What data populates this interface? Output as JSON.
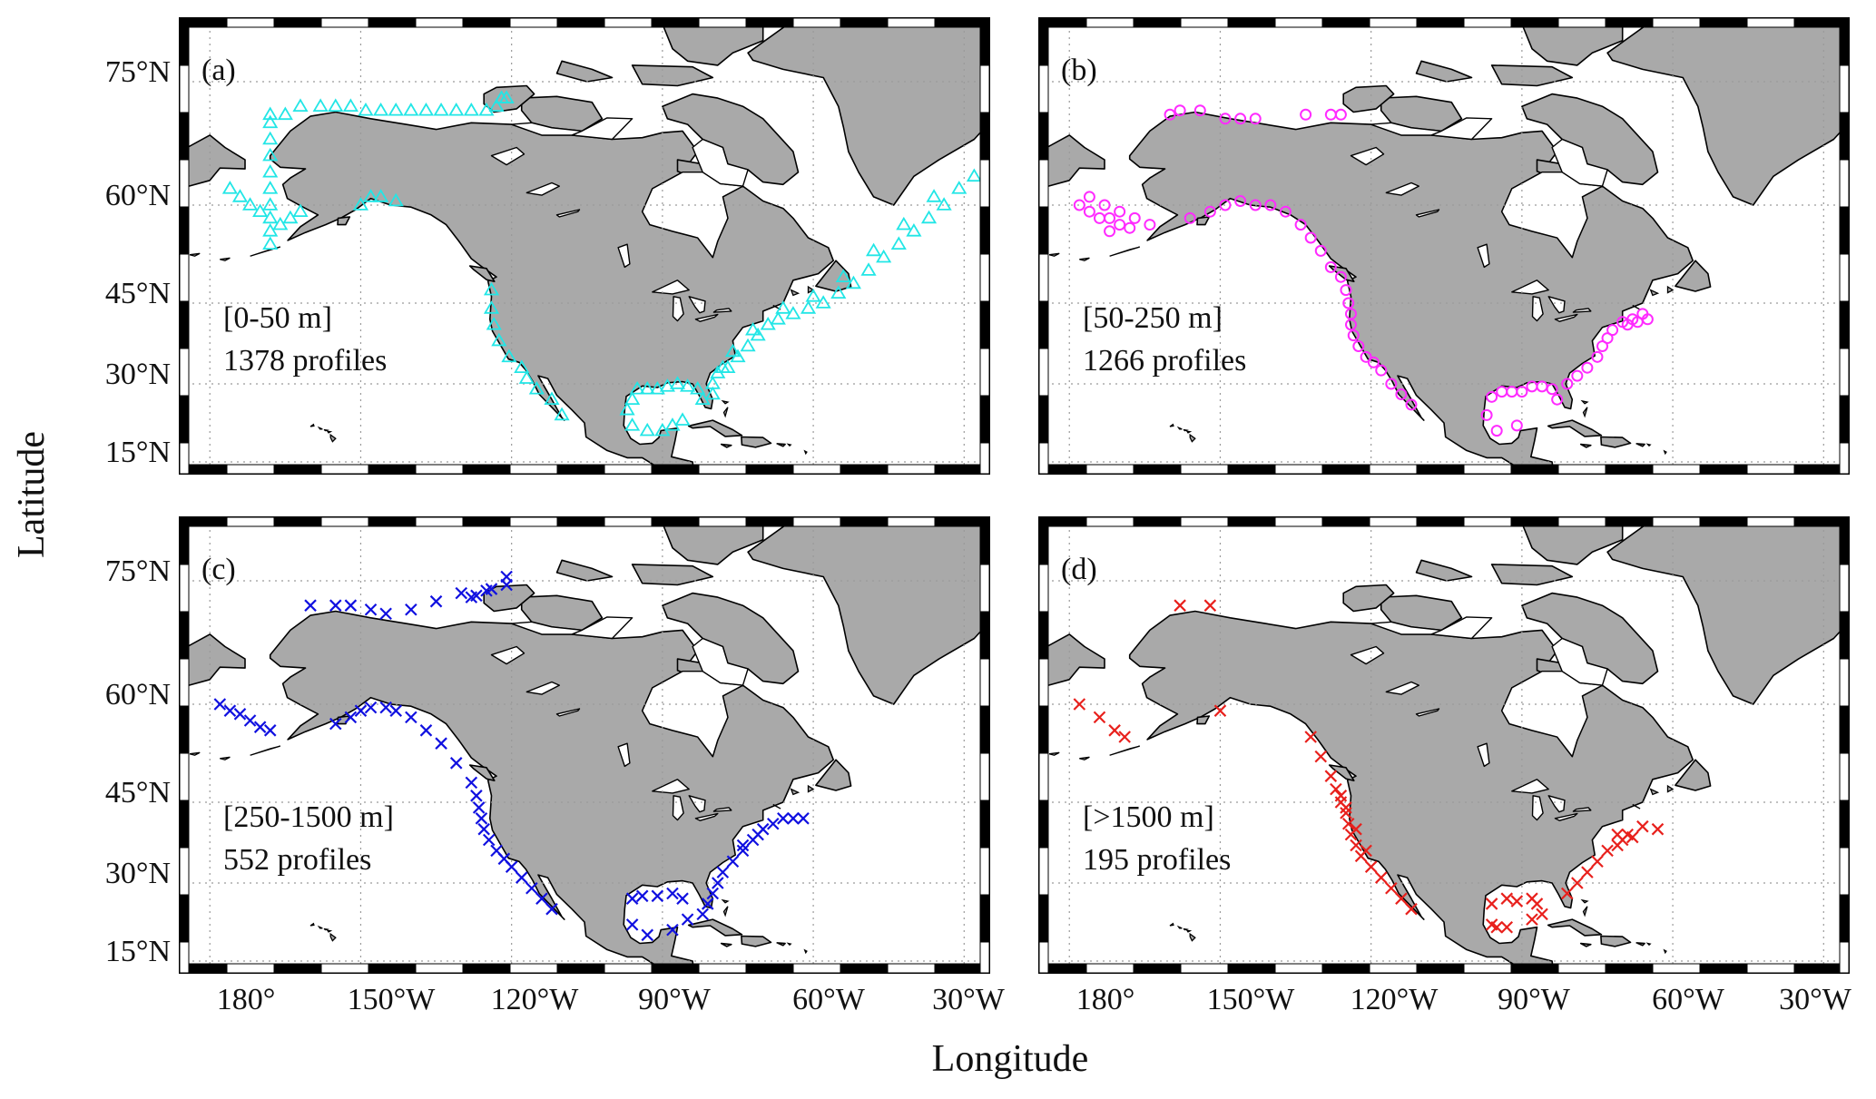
{
  "figure": {
    "xlabel": "Longitude",
    "ylabel": "Latitude",
    "lon_ticks": [
      "180°",
      "150°W",
      "120°W",
      "90°W",
      "60°W",
      "30°W"
    ],
    "lat_ticks": [
      "75°N",
      "60°N",
      "45°N",
      "30°N",
      "15°N"
    ],
    "land_color": "#a9a9a9",
    "grid": "dotted"
  },
  "chart_data": [
    {
      "type": "scatter",
      "panel": "(a)",
      "range_label": "[0-50 m]",
      "count_label": "1378 profiles",
      "marker": "triangle",
      "color": "#22e6e6",
      "xlim": [
        -186,
        -25
      ],
      "ylim": [
        11,
        82
      ],
      "points": [
        [
          -168,
          54
        ],
        [
          -168,
          56
        ],
        [
          -168,
          58
        ],
        [
          -168,
          60
        ],
        [
          -168,
          62
        ],
        [
          -168,
          64
        ],
        [
          -168,
          66
        ],
        [
          -168,
          68
        ],
        [
          -168,
          70
        ],
        [
          -168,
          71
        ],
        [
          -172,
          60
        ],
        [
          -174,
          61
        ],
        [
          -176,
          62
        ],
        [
          -170,
          59
        ],
        [
          -166,
          57
        ],
        [
          -164,
          58
        ],
        [
          -162,
          59
        ],
        [
          -165,
          71
        ],
        [
          -162,
          72
        ],
        [
          -158,
          72
        ],
        [
          -155,
          72
        ],
        [
          -152,
          72
        ],
        [
          -149,
          71.5
        ],
        [
          -146,
          71.5
        ],
        [
          -143,
          71.5
        ],
        [
          -140,
          71.5
        ],
        [
          -137,
          71.5
        ],
        [
          -134,
          71.5
        ],
        [
          -131,
          71.5
        ],
        [
          -128,
          71.5
        ],
        [
          -125,
          71.5
        ],
        [
          -123,
          72
        ],
        [
          -122,
          73
        ],
        [
          -121,
          73
        ],
        [
          -150,
          60
        ],
        [
          -148,
          61
        ],
        [
          -146,
          61
        ],
        [
          -143,
          60.5
        ],
        [
          -124,
          47
        ],
        [
          -124,
          44
        ],
        [
          -123.5,
          41
        ],
        [
          -122.5,
          38
        ],
        [
          -120.5,
          35
        ],
        [
          -118,
          33
        ],
        [
          -117,
          31
        ],
        [
          -115,
          29
        ],
        [
          -112,
          27
        ],
        [
          -110,
          24
        ],
        [
          -95,
          29
        ],
        [
          -93,
          29
        ],
        [
          -91,
          29
        ],
        [
          -89,
          29.5
        ],
        [
          -87,
          30
        ],
        [
          -85,
          29.5
        ],
        [
          -83,
          29
        ],
        [
          -82,
          27
        ],
        [
          -96,
          27
        ],
        [
          -97,
          25
        ],
        [
          -96,
          22
        ],
        [
          -93,
          21
        ],
        [
          -90,
          21
        ],
        [
          -88,
          22
        ],
        [
          -86,
          23
        ],
        [
          -80,
          28
        ],
        [
          -80,
          30
        ],
        [
          -79,
          32
        ],
        [
          -77,
          33
        ],
        [
          -75,
          35
        ],
        [
          -73,
          37
        ],
        [
          -71,
          39
        ],
        [
          -69,
          41
        ],
        [
          -67,
          42
        ],
        [
          -64,
          43
        ],
        [
          -61,
          44
        ],
        [
          -58,
          45
        ],
        [
          -55,
          46.5
        ],
        [
          -52,
          48
        ],
        [
          -49,
          50
        ],
        [
          -46,
          52
        ],
        [
          -43,
          54
        ],
        [
          -40,
          56
        ],
        [
          -37,
          58
        ],
        [
          -34,
          60
        ],
        [
          -31,
          62
        ],
        [
          -28,
          63.5
        ],
        [
          -78,
          33
        ],
        [
          -76,
          36
        ],
        [
          -72,
          40
        ],
        [
          -66,
          44
        ],
        [
          -60,
          46
        ],
        [
          -54,
          49
        ],
        [
          -48,
          53
        ],
        [
          -42,
          57
        ],
        [
          -36,
          61
        ]
      ]
    },
    {
      "type": "scatter",
      "panel": "(b)",
      "range_label": "[50-250 m]",
      "count_label": "1266 profiles",
      "marker": "circle",
      "color": "#ff2bff",
      "xlim": [
        -186,
        -25
      ],
      "ylim": [
        11,
        82
      ],
      "points": [
        [
          -178,
          60
        ],
        [
          -176,
          59
        ],
        [
          -174,
          58
        ],
        [
          -172,
          58
        ],
        [
          -170,
          57
        ],
        [
          -168,
          56.5
        ],
        [
          -176,
          61
        ],
        [
          -173,
          60
        ],
        [
          -170,
          59
        ],
        [
          -167,
          58
        ],
        [
          -164,
          57
        ],
        [
          -172,
          56
        ],
        [
          -160,
          71
        ],
        [
          -158,
          71.5
        ],
        [
          -154,
          71.5
        ],
        [
          -149,
          70.5
        ],
        [
          -146,
          70.5
        ],
        [
          -143,
          70.5
        ],
        [
          -133,
          71
        ],
        [
          -128,
          71
        ],
        [
          -126,
          71
        ],
        [
          -156,
          58
        ],
        [
          -152,
          59
        ],
        [
          -149,
          60
        ],
        [
          -146,
          60.5
        ],
        [
          -143,
          60
        ],
        [
          -140,
          60
        ],
        [
          -137,
          59
        ],
        [
          -134,
          57
        ],
        [
          -132,
          55
        ],
        [
          -130,
          53
        ],
        [
          -128,
          50.5
        ],
        [
          -126,
          49
        ],
        [
          -125,
          47
        ],
        [
          -124.5,
          45
        ],
        [
          -124,
          43
        ],
        [
          -124,
          41
        ],
        [
          -123.5,
          39
        ],
        [
          -122.5,
          37
        ],
        [
          -121,
          35
        ],
        [
          -119.5,
          34
        ],
        [
          -118,
          32.5
        ],
        [
          -116,
          30
        ],
        [
          -114,
          28
        ],
        [
          -112,
          26
        ],
        [
          -96,
          27.5
        ],
        [
          -94,
          28.5
        ],
        [
          -92,
          28.5
        ],
        [
          -90,
          28.5
        ],
        [
          -88,
          29.5
        ],
        [
          -86,
          29.5
        ],
        [
          -84,
          29
        ],
        [
          -83,
          27
        ],
        [
          -97,
          24
        ],
        [
          -95,
          21
        ],
        [
          -91,
          22
        ],
        [
          -81,
          30
        ],
        [
          -79,
          31.5
        ],
        [
          -77,
          33
        ],
        [
          -75,
          35
        ],
        [
          -74,
          37
        ],
        [
          -73,
          38.5
        ],
        [
          -72,
          40
        ],
        [
          -70,
          41.5
        ],
        [
          -68,
          42
        ],
        [
          -66,
          43
        ],
        [
          -65,
          42
        ],
        [
          -67,
          41.5
        ],
        [
          -69,
          41
        ]
      ]
    },
    {
      "type": "scatter",
      "panel": "(c)",
      "range_label": "[250-1500 m]",
      "count_label": "552 profiles",
      "marker": "x",
      "color": "#1010e0",
      "xlim": [
        -186,
        -25
      ],
      "ylim": [
        11,
        82
      ],
      "points": [
        [
          -160,
          72
        ],
        [
          -155,
          72
        ],
        [
          -152,
          72
        ],
        [
          -148,
          71.5
        ],
        [
          -145,
          71
        ],
        [
          -140,
          71.5
        ],
        [
          -135,
          72.5
        ],
        [
          -130,
          73.5
        ],
        [
          -128,
          73
        ],
        [
          -124,
          74
        ],
        [
          -121,
          74.5
        ],
        [
          -121,
          75.5
        ],
        [
          -125,
          73.8
        ],
        [
          -127,
          73.2
        ],
        [
          -178,
          60
        ],
        [
          -176,
          59
        ],
        [
          -174,
          58.5
        ],
        [
          -172,
          57.5
        ],
        [
          -170,
          56.5
        ],
        [
          -168,
          56
        ],
        [
          -155,
          57
        ],
        [
          -152,
          58
        ],
        [
          -150,
          59
        ],
        [
          -148,
          59.5
        ],
        [
          -145,
          59.5
        ],
        [
          -143,
          59
        ],
        [
          -140,
          58
        ],
        [
          -137,
          56
        ],
        [
          -134,
          54
        ],
        [
          -131,
          51
        ],
        [
          -128,
          48
        ],
        [
          -127,
          46
        ],
        [
          -126.5,
          44
        ],
        [
          -126,
          42
        ],
        [
          -125.5,
          40
        ],
        [
          -124.5,
          38
        ],
        [
          -123,
          36
        ],
        [
          -121.5,
          34.5
        ],
        [
          -120,
          33
        ],
        [
          -118,
          31
        ],
        [
          -116,
          29
        ],
        [
          -114,
          27
        ],
        [
          -112,
          25
        ],
        [
          -96,
          27
        ],
        [
          -94,
          27.5
        ],
        [
          -91,
          27.5
        ],
        [
          -88,
          28
        ],
        [
          -86,
          27
        ],
        [
          -96,
          22
        ],
        [
          -93,
          20
        ],
        [
          -88,
          21
        ],
        [
          -85,
          23
        ],
        [
          -82,
          24
        ],
        [
          -81,
          26
        ],
        [
          -80,
          28
        ],
        [
          -79,
          30
        ],
        [
          -78,
          32
        ],
        [
          -76,
          34
        ],
        [
          -74,
          36
        ],
        [
          -72,
          38
        ],
        [
          -70,
          40
        ],
        [
          -68,
          41
        ],
        [
          -66,
          42
        ],
        [
          -64,
          42
        ],
        [
          -62,
          42
        ],
        [
          -74,
          37
        ],
        [
          -71,
          39
        ]
      ]
    },
    {
      "type": "scatter",
      "panel": "(d)",
      "range_label": "[>1500 m]",
      "count_label": "195 profiles",
      "marker": "x",
      "color": "#e8201c",
      "xlim": [
        -186,
        -25
      ],
      "ylim": [
        11,
        82
      ],
      "points": [
        [
          -158,
          72
        ],
        [
          -152,
          72
        ],
        [
          -178,
          60
        ],
        [
          -174,
          58
        ],
        [
          -171,
          56
        ],
        [
          -169,
          55
        ],
        [
          -150,
          59
        ],
        [
          -132,
          55
        ],
        [
          -130,
          52
        ],
        [
          -128,
          49
        ],
        [
          -127,
          47
        ],
        [
          -126,
          45
        ],
        [
          -125,
          43
        ],
        [
          -124.5,
          41
        ],
        [
          -124,
          39
        ],
        [
          -123,
          37
        ],
        [
          -122,
          35
        ],
        [
          -120,
          33
        ],
        [
          -118,
          31
        ],
        [
          -116,
          29
        ],
        [
          -114,
          27
        ],
        [
          -112,
          25
        ],
        [
          -126,
          46
        ],
        [
          -125,
          44
        ],
        [
          -123,
          40
        ],
        [
          -121,
          36
        ],
        [
          -96,
          26
        ],
        [
          -93,
          27
        ],
        [
          -91,
          26.5
        ],
        [
          -88,
          27
        ],
        [
          -87,
          26
        ],
        [
          -96,
          22
        ],
        [
          -95,
          21.5
        ],
        [
          -93,
          21.5
        ],
        [
          -88,
          23
        ],
        [
          -86,
          24
        ],
        [
          -81,
          28
        ],
        [
          -79,
          30
        ],
        [
          -77,
          32
        ],
        [
          -75,
          34
        ],
        [
          -73,
          36
        ],
        [
          -71,
          37
        ],
        [
          -70,
          38
        ],
        [
          -69,
          39
        ],
        [
          -71,
          39
        ],
        [
          -68,
          38.5
        ],
        [
          -66,
          40.5
        ],
        [
          -63,
          40
        ]
      ]
    }
  ]
}
